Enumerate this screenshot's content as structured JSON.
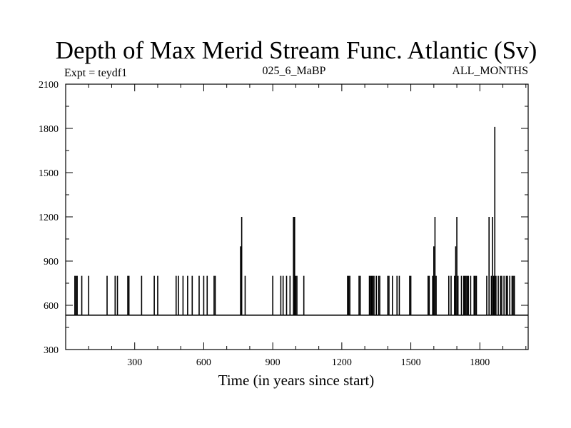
{
  "chart_data": {
    "type": "line",
    "title": "Depth of Max Merid Stream Func. Atlantic (Sv)",
    "subtitle_left": "Expt = teydf1",
    "subtitle_center": "025_6_MaBP",
    "subtitle_right": "ALL_MONTHS",
    "xlabel": "Time (in years since start)",
    "ylabel": "",
    "xlim": [
      0,
      2010
    ],
    "ylim": [
      300,
      2100
    ],
    "xticks": [
      300,
      600,
      900,
      1200,
      1500,
      1800
    ],
    "yticks": [
      300,
      600,
      900,
      1200,
      1500,
      1800,
      2100
    ],
    "baseline": 533,
    "series": [
      {
        "name": "depth",
        "spikes": [
          {
            "x": 40,
            "y": 800
          },
          {
            "x": 45,
            "y": 800
          },
          {
            "x": 50,
            "y": 800
          },
          {
            "x": 70,
            "y": 800
          },
          {
            "x": 100,
            "y": 800
          },
          {
            "x": 180,
            "y": 800
          },
          {
            "x": 215,
            "y": 800
          },
          {
            "x": 225,
            "y": 800
          },
          {
            "x": 270,
            "y": 800
          },
          {
            "x": 275,
            "y": 800
          },
          {
            "x": 330,
            "y": 800
          },
          {
            "x": 385,
            "y": 800
          },
          {
            "x": 400,
            "y": 800
          },
          {
            "x": 480,
            "y": 800
          },
          {
            "x": 490,
            "y": 800
          },
          {
            "x": 510,
            "y": 800
          },
          {
            "x": 530,
            "y": 800
          },
          {
            "x": 550,
            "y": 800
          },
          {
            "x": 580,
            "y": 800
          },
          {
            "x": 600,
            "y": 800
          },
          {
            "x": 615,
            "y": 800
          },
          {
            "x": 645,
            "y": 800
          },
          {
            "x": 650,
            "y": 800
          },
          {
            "x": 760,
            "y": 1000
          },
          {
            "x": 765,
            "y": 1200
          },
          {
            "x": 780,
            "y": 800
          },
          {
            "x": 900,
            "y": 800
          },
          {
            "x": 935,
            "y": 800
          },
          {
            "x": 945,
            "y": 800
          },
          {
            "x": 960,
            "y": 800
          },
          {
            "x": 975,
            "y": 800
          },
          {
            "x": 990,
            "y": 1200
          },
          {
            "x": 995,
            "y": 1200
          },
          {
            "x": 1000,
            "y": 800
          },
          {
            "x": 1005,
            "y": 800
          },
          {
            "x": 1035,
            "y": 800
          },
          {
            "x": 1225,
            "y": 800
          },
          {
            "x": 1230,
            "y": 800
          },
          {
            "x": 1235,
            "y": 800
          },
          {
            "x": 1275,
            "y": 800
          },
          {
            "x": 1280,
            "y": 800
          },
          {
            "x": 1320,
            "y": 800
          },
          {
            "x": 1325,
            "y": 800
          },
          {
            "x": 1330,
            "y": 800
          },
          {
            "x": 1335,
            "y": 800
          },
          {
            "x": 1340,
            "y": 800
          },
          {
            "x": 1350,
            "y": 800
          },
          {
            "x": 1360,
            "y": 800
          },
          {
            "x": 1365,
            "y": 800
          },
          {
            "x": 1400,
            "y": 800
          },
          {
            "x": 1405,
            "y": 800
          },
          {
            "x": 1420,
            "y": 800
          },
          {
            "x": 1440,
            "y": 800
          },
          {
            "x": 1450,
            "y": 800
          },
          {
            "x": 1495,
            "y": 800
          },
          {
            "x": 1500,
            "y": 800
          },
          {
            "x": 1575,
            "y": 800
          },
          {
            "x": 1580,
            "y": 800
          },
          {
            "x": 1595,
            "y": 800
          },
          {
            "x": 1600,
            "y": 1000
          },
          {
            "x": 1605,
            "y": 1200
          },
          {
            "x": 1610,
            "y": 800
          },
          {
            "x": 1665,
            "y": 800
          },
          {
            "x": 1675,
            "y": 800
          },
          {
            "x": 1690,
            "y": 800
          },
          {
            "x": 1695,
            "y": 1000
          },
          {
            "x": 1700,
            "y": 1200
          },
          {
            "x": 1705,
            "y": 800
          },
          {
            "x": 1720,
            "y": 800
          },
          {
            "x": 1730,
            "y": 800
          },
          {
            "x": 1735,
            "y": 800
          },
          {
            "x": 1740,
            "y": 800
          },
          {
            "x": 1745,
            "y": 800
          },
          {
            "x": 1750,
            "y": 800
          },
          {
            "x": 1760,
            "y": 800
          },
          {
            "x": 1775,
            "y": 800
          },
          {
            "x": 1780,
            "y": 800
          },
          {
            "x": 1785,
            "y": 800
          },
          {
            "x": 1830,
            "y": 800
          },
          {
            "x": 1840,
            "y": 1200
          },
          {
            "x": 1850,
            "y": 800
          },
          {
            "x": 1855,
            "y": 1200
          },
          {
            "x": 1860,
            "y": 800
          },
          {
            "x": 1865,
            "y": 1810
          },
          {
            "x": 1870,
            "y": 800
          },
          {
            "x": 1880,
            "y": 800
          },
          {
            "x": 1890,
            "y": 800
          },
          {
            "x": 1895,
            "y": 800
          },
          {
            "x": 1905,
            "y": 800
          },
          {
            "x": 1915,
            "y": 800
          },
          {
            "x": 1920,
            "y": 800
          },
          {
            "x": 1930,
            "y": 800
          },
          {
            "x": 1940,
            "y": 800
          },
          {
            "x": 1945,
            "y": 800
          },
          {
            "x": 1950,
            "y": 800
          }
        ]
      }
    ]
  }
}
